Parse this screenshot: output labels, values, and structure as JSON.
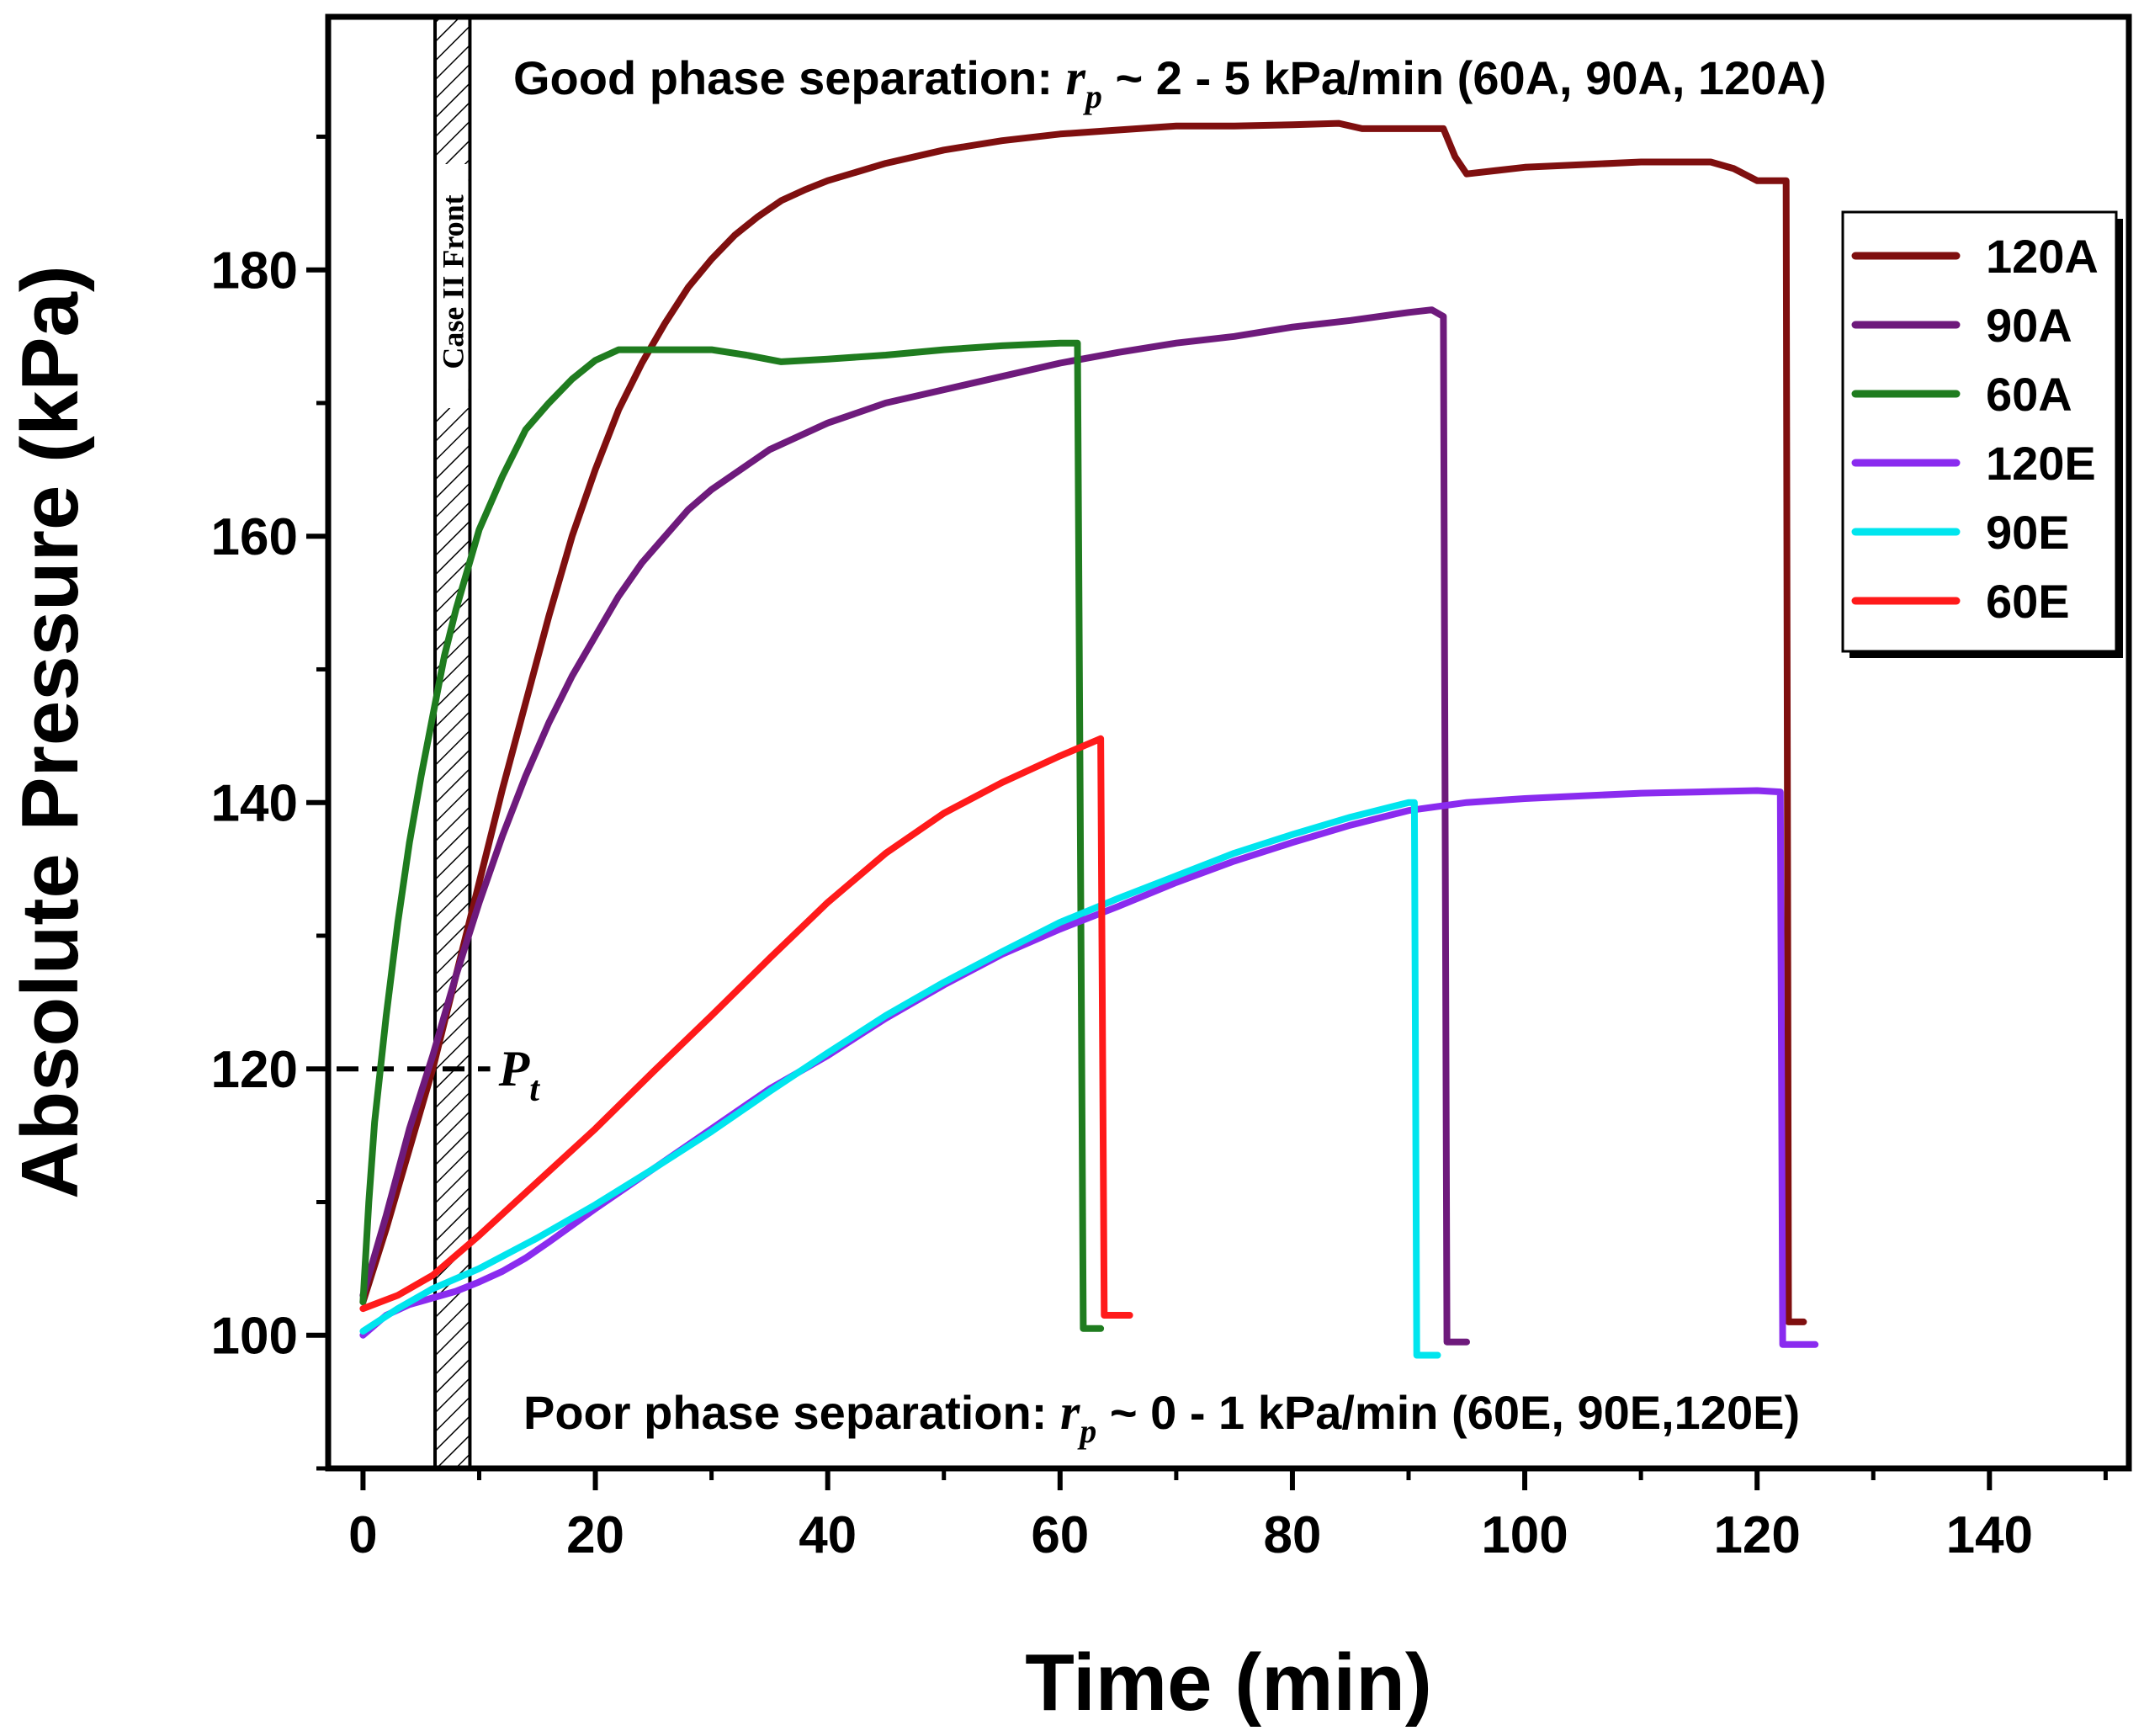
{
  "chart_data": {
    "type": "line",
    "xlabel": "Time (min)",
    "ylabel": "Absolute Pressure (kPa)",
    "xlim": [
      -3,
      152
    ],
    "ylim": [
      90,
      199
    ],
    "x_ticks": [
      0,
      20,
      40,
      60,
      80,
      100,
      120,
      140
    ],
    "y_ticks": [
      100,
      120,
      140,
      160,
      180
    ],
    "grid": false,
    "legend_position": "top-right",
    "series": [
      {
        "name": "120A",
        "color": "#7f0f0f",
        "points": [
          [
            0,
            102.5
          ],
          [
            2,
            108
          ],
          [
            4,
            114
          ],
          [
            6,
            120
          ],
          [
            8,
            127
          ],
          [
            10,
            134
          ],
          [
            12,
            141
          ],
          [
            14,
            147.5
          ],
          [
            16,
            154
          ],
          [
            18,
            160
          ],
          [
            20,
            165
          ],
          [
            22,
            169.5
          ],
          [
            24,
            173
          ],
          [
            26,
            176
          ],
          [
            28,
            178.7
          ],
          [
            30,
            180.8
          ],
          [
            32,
            182.6
          ],
          [
            34,
            184
          ],
          [
            36,
            185.2
          ],
          [
            38,
            186
          ],
          [
            40,
            186.7
          ],
          [
            45,
            188
          ],
          [
            50,
            189
          ],
          [
            55,
            189.7
          ],
          [
            60,
            190.2
          ],
          [
            65,
            190.5
          ],
          [
            70,
            190.8
          ],
          [
            75,
            190.8
          ],
          [
            80,
            190.9
          ],
          [
            84,
            191
          ],
          [
            86,
            190.6
          ],
          [
            90,
            190.6
          ],
          [
            93,
            190.6
          ],
          [
            94,
            188.5
          ],
          [
            95,
            187.2
          ],
          [
            100,
            187.7
          ],
          [
            110,
            188.1
          ],
          [
            116,
            188.1
          ],
          [
            118,
            187.6
          ],
          [
            120,
            186.7
          ],
          [
            121.5,
            186.7
          ],
          [
            122.5,
            186.7
          ],
          [
            122.7,
            101
          ],
          [
            124,
            101
          ]
        ]
      },
      {
        "name": "90A",
        "color": "#6e1a7c",
        "points": [
          [
            0,
            103
          ],
          [
            2,
            109
          ],
          [
            4,
            115.5
          ],
          [
            6,
            121
          ],
          [
            8,
            127
          ],
          [
            10,
            132.5
          ],
          [
            12,
            137.5
          ],
          [
            14,
            142
          ],
          [
            16,
            146
          ],
          [
            18,
            149.5
          ],
          [
            20,
            152.5
          ],
          [
            22,
            155.5
          ],
          [
            24,
            158
          ],
          [
            26,
            160
          ],
          [
            28,
            162
          ],
          [
            30,
            163.5
          ],
          [
            35,
            166.5
          ],
          [
            40,
            168.5
          ],
          [
            45,
            170
          ],
          [
            50,
            171
          ],
          [
            55,
            172
          ],
          [
            60,
            173
          ],
          [
            65,
            173.8
          ],
          [
            70,
            174.5
          ],
          [
            75,
            175
          ],
          [
            80,
            175.7
          ],
          [
            85,
            176.2
          ],
          [
            90,
            176.8
          ],
          [
            92,
            177
          ],
          [
            93,
            176.5
          ],
          [
            93.3,
            99.5
          ],
          [
            95,
            99.5
          ]
        ]
      },
      {
        "name": "60A",
        "color": "#1f7c1f",
        "points": [
          [
            0,
            102.5
          ],
          [
            0.5,
            110
          ],
          [
            1,
            116
          ],
          [
            2,
            124
          ],
          [
            3,
            131
          ],
          [
            4,
            137
          ],
          [
            5,
            142
          ],
          [
            6,
            146.5
          ],
          [
            7,
            151
          ],
          [
            8,
            154.5
          ],
          [
            10,
            160.5
          ],
          [
            12,
            164.5
          ],
          [
            14,
            168
          ],
          [
            16,
            170
          ],
          [
            18,
            171.8
          ],
          [
            20,
            173.2
          ],
          [
            22,
            174
          ],
          [
            25,
            174
          ],
          [
            30,
            174
          ],
          [
            33,
            173.6
          ],
          [
            36,
            173.1
          ],
          [
            40,
            173.3
          ],
          [
            45,
            173.6
          ],
          [
            50,
            174
          ],
          [
            55,
            174.3
          ],
          [
            60,
            174.5
          ],
          [
            61.5,
            174.5
          ],
          [
            62,
            100.5
          ],
          [
            63.5,
            100.5
          ]
        ]
      },
      {
        "name": "120E",
        "color": "#8a2bef",
        "points": [
          [
            0,
            100
          ],
          [
            2,
            101.5
          ],
          [
            4,
            102.3
          ],
          [
            6,
            102.8
          ],
          [
            8,
            103.3
          ],
          [
            10,
            104
          ],
          [
            12,
            104.8
          ],
          [
            14,
            105.8
          ],
          [
            16,
            107
          ],
          [
            20,
            109.5
          ],
          [
            25,
            112.5
          ],
          [
            30,
            115.5
          ],
          [
            35,
            118.5
          ],
          [
            40,
            121
          ],
          [
            45,
            123.8
          ],
          [
            50,
            126.3
          ],
          [
            55,
            128.6
          ],
          [
            60,
            130.5
          ],
          [
            65,
            132.2
          ],
          [
            70,
            134
          ],
          [
            75,
            135.6
          ],
          [
            80,
            137
          ],
          [
            85,
            138.3
          ],
          [
            90,
            139.4
          ],
          [
            95,
            140
          ],
          [
            100,
            140.3
          ],
          [
            105,
            140.5
          ],
          [
            110,
            140.7
          ],
          [
            115,
            140.8
          ],
          [
            120,
            140.9
          ],
          [
            122,
            140.8
          ],
          [
            122.2,
            99.3
          ],
          [
            125,
            99.3
          ]
        ]
      },
      {
        "name": "90E",
        "color": "#00e5ee",
        "points": [
          [
            0,
            100.3
          ],
          [
            3,
            102
          ],
          [
            6,
            103.5
          ],
          [
            10,
            105
          ],
          [
            15,
            107.3
          ],
          [
            20,
            109.8
          ],
          [
            25,
            112.5
          ],
          [
            30,
            115.3
          ],
          [
            35,
            118.3
          ],
          [
            40,
            121.2
          ],
          [
            45,
            124
          ],
          [
            50,
            126.5
          ],
          [
            55,
            128.8
          ],
          [
            60,
            131
          ],
          [
            65,
            132.8
          ],
          [
            70,
            134.5
          ],
          [
            75,
            136.2
          ],
          [
            80,
            137.6
          ],
          [
            85,
            138.9
          ],
          [
            90,
            140
          ],
          [
            90.5,
            140
          ],
          [
            90.7,
            98.5
          ],
          [
            92.5,
            98.5
          ]
        ]
      },
      {
        "name": "60E",
        "color": "#ff1a1a",
        "points": [
          [
            0,
            102
          ],
          [
            3,
            103
          ],
          [
            6,
            104.5
          ],
          [
            10,
            107.5
          ],
          [
            15,
            111.5
          ],
          [
            20,
            115.5
          ],
          [
            25,
            119.8
          ],
          [
            30,
            124
          ],
          [
            35,
            128.3
          ],
          [
            40,
            132.5
          ],
          [
            45,
            136.2
          ],
          [
            50,
            139.2
          ],
          [
            55,
            141.5
          ],
          [
            60,
            143.5
          ],
          [
            63.5,
            144.8
          ],
          [
            63.8,
            101.5
          ],
          [
            66,
            101.5
          ]
        ]
      }
    ],
    "annotations": {
      "top_prefix": "Good phase separation: ",
      "top_r": "r",
      "top_sub": "p",
      "top_suffix": " ~ 2 - 5 kPa/min (60A, 90A, 120A)",
      "bottom_prefix": "Poor phase separation: ",
      "bottom_r": "r",
      "bottom_sub": "p",
      "bottom_suffix": " ~ 0 - 1 kPa/min (60E, 90E,120E)",
      "band_label": "Case II Front",
      "band_x_range": [
        6.2,
        9.2
      ],
      "pt_label": "P",
      "pt_sub": "t",
      "pt_value": 120,
      "pt_x_range": [
        -3,
        9.5
      ]
    }
  }
}
